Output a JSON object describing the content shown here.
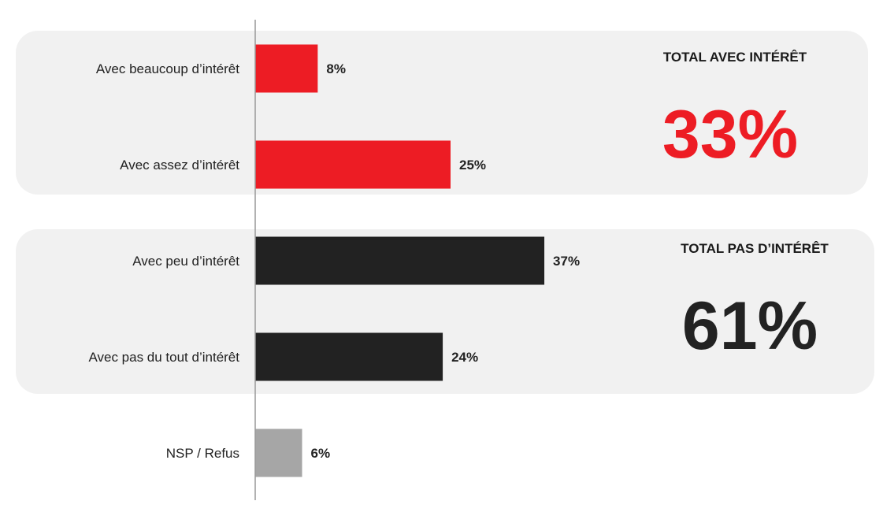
{
  "chart_data": {
    "type": "bar",
    "orientation": "horizontal",
    "categories": [
      "Avec beaucoup d’intérêt",
      "Avec assez d’intérêt",
      "Avec peu d’intérêt",
      "Avec pas du tout d’intérêt",
      "NSP / Refus"
    ],
    "values": [
      8,
      25,
      37,
      24,
      6
    ],
    "value_labels": [
      "8%",
      "25%",
      "37%",
      "24%",
      "6%"
    ],
    "bar_colors": [
      "#ed1c24",
      "#ed1c24",
      "#222222",
      "#222222",
      "#a6a6a6"
    ],
    "xlim": [
      0,
      100
    ],
    "grid": false,
    "groups": [
      {
        "title": "TOTAL AVEC INTÉRÊT",
        "total": "33%",
        "color": "#ed1c24",
        "members": [
          0,
          1
        ]
      },
      {
        "title": "TOTAL PAS D’INTÉRÊT",
        "total": "61%",
        "color": "#222222",
        "members": [
          2,
          3
        ]
      }
    ]
  },
  "colors": {
    "panel": "#f1f1f1",
    "axis": "#999999",
    "text": "#222222"
  }
}
